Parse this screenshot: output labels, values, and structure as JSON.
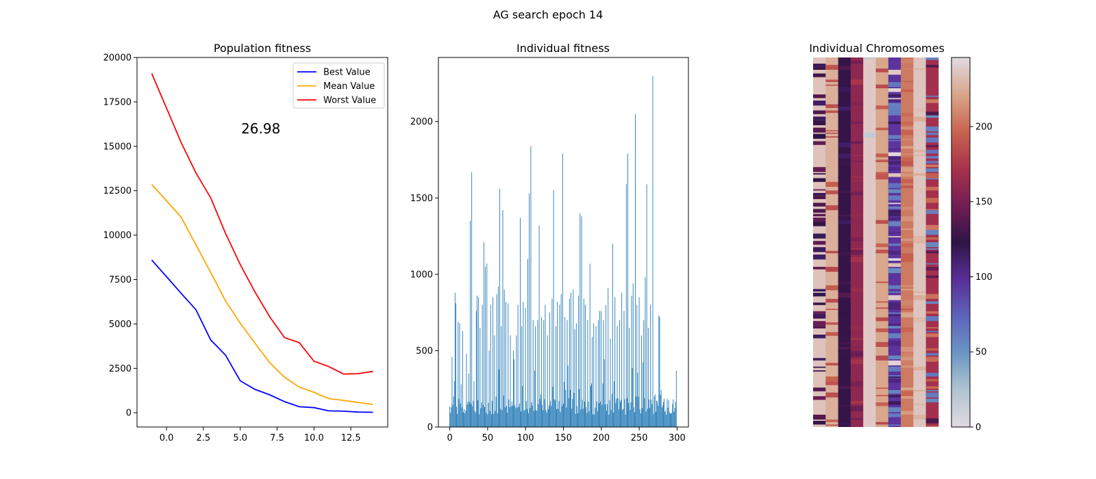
{
  "figure": {
    "suptitle": "AG search epoch 14"
  },
  "chart_data": [
    {
      "type": "line",
      "title": "Population fitness",
      "xlabel": "",
      "ylabel": "",
      "xlim": [
        -2,
        15
      ],
      "ylim": [
        -800,
        20000
      ],
      "x_ticks": [
        0.0,
        2.5,
        5.0,
        7.5,
        10.0,
        12.5
      ],
      "x_tick_labels": [
        "0.0",
        "2.5",
        "5.0",
        "7.5",
        "10.0",
        "12.5"
      ],
      "y_ticks": [
        0,
        2500,
        5000,
        7500,
        10000,
        12500,
        15000,
        17500,
        20000
      ],
      "y_tick_labels": [
        "0",
        "2500",
        "5000",
        "7500",
        "10000",
        "12500",
        "15000",
        "17500",
        "20000"
      ],
      "grid": false,
      "legend": "top-right",
      "annotation": {
        "text": "26.98",
        "x": 5.0,
        "y": 16000,
        "color": "#0000ff"
      },
      "x": [
        -1,
        0,
        1,
        2,
        3,
        4,
        5,
        6,
        7,
        8,
        9,
        10,
        11,
        12,
        13,
        14
      ],
      "series": [
        {
          "name": "Best Value",
          "color": "#0000ff",
          "values": [
            8600,
            7660,
            6720,
            5800,
            4100,
            3250,
            1800,
            1320,
            1010,
            630,
            340,
            290,
            110,
            90,
            40,
            27
          ]
        },
        {
          "name": "Mean Value",
          "color": "#ffa500",
          "values": [
            12850,
            11930,
            11000,
            9450,
            7900,
            6300,
            5050,
            3920,
            2820,
            2000,
            1450,
            1150,
            800,
            700,
            580,
            470
          ]
        },
        {
          "name": "Worst Value",
          "color": "#ff0000",
          "values": [
            19100,
            17150,
            15200,
            13500,
            12100,
            10100,
            8350,
            6800,
            5400,
            4230,
            3950,
            2900,
            2600,
            2180,
            2200,
            2330
          ]
        }
      ]
    },
    {
      "type": "bar",
      "title": "Individual fitness",
      "xlabel": "",
      "ylabel": "",
      "xlim": [
        -15,
        315
      ],
      "ylim": [
        0,
        2420
      ],
      "x_ticks": [
        0,
        50,
        100,
        150,
        200,
        250,
        300
      ],
      "x_tick_labels": [
        "0",
        "50",
        "100",
        "150",
        "200",
        "250",
        "300"
      ],
      "y_ticks": [
        0,
        500,
        1000,
        1500,
        2000
      ],
      "y_tick_labels": [
        "0",
        "500",
        "1000",
        "1500",
        "2000"
      ],
      "grid": false,
      "color": "#1f77b4",
      "count": 300,
      "peaks": [
        [
          3,
          460
        ],
        [
          5,
          200
        ],
        [
          7,
          880
        ],
        [
          8,
          810
        ],
        [
          11,
          690
        ],
        [
          13,
          680
        ],
        [
          15,
          280
        ],
        [
          17,
          630
        ],
        [
          22,
          480
        ],
        [
          25,
          350
        ],
        [
          27,
          1350
        ],
        [
          29,
          1670
        ],
        [
          32,
          300
        ],
        [
          35,
          760
        ],
        [
          36,
          860
        ],
        [
          38,
          850
        ],
        [
          40,
          650
        ],
        [
          43,
          800
        ],
        [
          45,
          1210
        ],
        [
          47,
          1050
        ],
        [
          49,
          1070
        ],
        [
          52,
          500
        ],
        [
          54,
          800
        ],
        [
          57,
          850
        ],
        [
          59,
          600
        ],
        [
          62,
          870
        ],
        [
          64,
          920
        ],
        [
          66,
          1560
        ],
        [
          68,
          660
        ],
        [
          70,
          1420
        ],
        [
          72,
          900
        ],
        [
          74,
          820
        ],
        [
          77,
          810
        ],
        [
          80,
          600
        ],
        [
          84,
          500
        ],
        [
          88,
          600
        ],
        [
          90,
          800
        ],
        [
          93,
          1370
        ],
        [
          95,
          660
        ],
        [
          97,
          820
        ],
        [
          100,
          780
        ],
        [
          103,
          1100
        ],
        [
          105,
          1530
        ],
        [
          107,
          1840
        ],
        [
          110,
          700
        ],
        [
          113,
          660
        ],
        [
          116,
          700
        ],
        [
          118,
          1320
        ],
        [
          121,
          720
        ],
        [
          124,
          700
        ],
        [
          126,
          800
        ],
        [
          129,
          600
        ],
        [
          132,
          750
        ],
        [
          135,
          840
        ],
        [
          137,
          1550
        ],
        [
          140,
          660
        ],
        [
          142,
          820
        ],
        [
          145,
          800
        ],
        [
          147,
          870
        ],
        [
          149,
          1790
        ],
        [
          152,
          720
        ],
        [
          155,
          700
        ],
        [
          158,
          840
        ],
        [
          160,
          880
        ],
        [
          163,
          900
        ],
        [
          165,
          640
        ],
        [
          167,
          680
        ],
        [
          170,
          860
        ],
        [
          172,
          1400
        ],
        [
          174,
          1380
        ],
        [
          177,
          840
        ],
        [
          179,
          800
        ],
        [
          182,
          700
        ],
        [
          185,
          1070
        ],
        [
          188,
          590
        ],
        [
          190,
          680
        ],
        [
          193,
          660
        ],
        [
          196,
          700
        ],
        [
          198,
          760
        ],
        [
          200,
          760
        ],
        [
          203,
          700
        ],
        [
          206,
          800
        ],
        [
          209,
          910
        ],
        [
          212,
          580
        ],
        [
          215,
          1200
        ],
        [
          218,
          850
        ],
        [
          221,
          660
        ],
        [
          224,
          700
        ],
        [
          227,
          880
        ],
        [
          230,
          760
        ],
        [
          233,
          1590
        ],
        [
          235,
          1790
        ],
        [
          237,
          650
        ],
        [
          240,
          860
        ],
        [
          242,
          940
        ],
        [
          245,
          2050
        ],
        [
          247,
          800
        ],
        [
          250,
          850
        ],
        [
          253,
          600
        ],
        [
          256,
          700
        ],
        [
          258,
          980
        ],
        [
          260,
          1590
        ],
        [
          262,
          650
        ],
        [
          265,
          800
        ],
        [
          268,
          2300
        ],
        [
          270,
          200
        ],
        [
          272,
          100
        ],
        [
          276,
          730
        ],
        [
          277,
          720
        ]
      ]
    },
    {
      "type": "heatmap",
      "title": "Individual Chromosomes",
      "xlabel": "",
      "ylabel": "",
      "colormap": "twilight",
      "rows": 300,
      "columns": 10,
      "colorbar": {
        "range": [
          0,
          246
        ],
        "ticks": [
          0,
          50,
          100,
          150,
          200
        ],
        "tick_labels": [
          "0",
          "50",
          "100",
          "150",
          "200"
        ]
      },
      "column_patterns": [
        {
          "base": 235,
          "alt": [
            140,
            120
          ],
          "alt_prob": 0.55
        },
        {
          "base": 226,
          "alt": [
            190
          ],
          "alt_prob": 0.3
        },
        {
          "base": 125,
          "alt": [
            118,
            130
          ],
          "alt_prob": 0.4
        },
        {
          "base": 160,
          "alt": [
            150,
            168
          ],
          "alt_prob": 0.4
        },
        {
          "base": 238,
          "alt": [
            20
          ],
          "alt_prob": 0.03
        },
        {
          "base": 222,
          "alt": [
            190
          ],
          "alt_prob": 0.3
        },
        {
          "base": 95,
          "alt": [
            60,
            240,
            110
          ],
          "alt_prob": 0.6
        },
        {
          "base": 205,
          "alt": [
            215,
            195
          ],
          "alt_prob": 0.5
        },
        {
          "base": 236,
          "alt": [
            230
          ],
          "alt_prob": 0.2
        },
        {
          "base": 170,
          "alt": [
            140,
            60,
            200
          ],
          "alt_prob": 0.6
        }
      ]
    }
  ]
}
